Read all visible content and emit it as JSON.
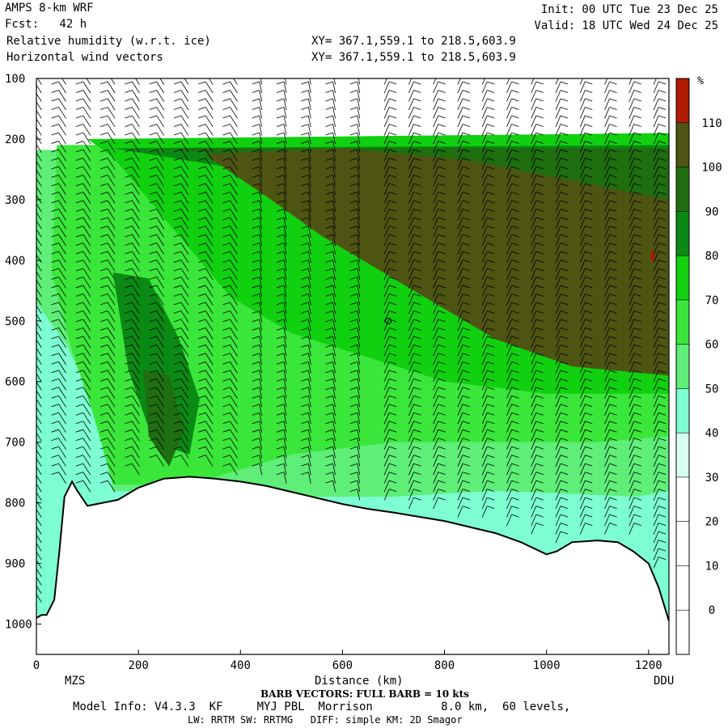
{
  "header": {
    "model": "AMPS 8-km WRF",
    "fcst": "Fcst:   42 h",
    "field1": "Relative humidity (w.r.t. ice)",
    "field2": "Horizontal wind vectors",
    "init": "Init: 00 UTC Tue 23 Dec 25",
    "valid": "Valid: 18 UTC Wed 24 Dec 25",
    "xy1": "XY= 367.1,559.1 to 218.5,603.9",
    "xy2": "XY= 367.1,559.1 to 218.5,603.9"
  },
  "footer": {
    "barb_note": "BARB VECTORS: FULL BARB = 10 kts",
    "model_info": "Model Info: V4.3.3  KF     MYJ PBL  Morrison          8.0 km,  60 levels,",
    "physics": "LW: RRTM SW: RRTMG   DIFF: simple KM: 2D Smagor"
  },
  "chart_data": {
    "type": "heatmap",
    "title": "Relative humidity (w.r.t. ice)",
    "xlabel": "Distance (km)",
    "ylabel": "",
    "x_range": [
      0,
      1240
    ],
    "y_range": [
      100,
      1050
    ],
    "y_inverted": true,
    "x_ticks": [
      0,
      200,
      400,
      600,
      800,
      1000,
      1200
    ],
    "y_ticks": [
      100,
      200,
      300,
      400,
      500,
      600,
      700,
      800,
      900,
      1000
    ],
    "endpoint_labels": {
      "left": "MZS",
      "right": "DDU"
    },
    "colorbar": {
      "unit": "%",
      "levels": [
        0,
        10,
        20,
        30,
        40,
        50,
        60,
        70,
        80,
        90,
        100,
        110
      ],
      "colors": [
        "#ffffff",
        "#ffffff",
        "#ffffff",
        "#ffffff",
        "#d8fff0",
        "#7dffd2",
        "#5fee78",
        "#3be63b",
        "#10d010",
        "#0a8a14",
        "#1f6e10",
        "#4e5412",
        "#b01a00"
      ]
    },
    "terrain_pressure": [
      [
        0,
        990
      ],
      [
        10,
        985
      ],
      [
        20,
        985
      ],
      [
        35,
        960
      ],
      [
        45,
        880
      ],
      [
        55,
        790
      ],
      [
        70,
        765
      ],
      [
        80,
        780
      ],
      [
        100,
        805
      ],
      [
        130,
        800
      ],
      [
        160,
        795
      ],
      [
        200,
        775
      ],
      [
        250,
        760
      ],
      [
        300,
        757
      ],
      [
        350,
        760
      ],
      [
        400,
        765
      ],
      [
        450,
        772
      ],
      [
        500,
        782
      ],
      [
        550,
        792
      ],
      [
        600,
        802
      ],
      [
        650,
        810
      ],
      [
        700,
        816
      ],
      [
        750,
        823
      ],
      [
        800,
        830
      ],
      [
        850,
        840
      ],
      [
        900,
        850
      ],
      [
        950,
        865
      ],
      [
        1000,
        885
      ],
      [
        1020,
        880
      ],
      [
        1050,
        865
      ],
      [
        1100,
        862
      ],
      [
        1140,
        865
      ],
      [
        1170,
        880
      ],
      [
        1200,
        900
      ],
      [
        1220,
        940
      ],
      [
        1240,
        995
      ]
    ],
    "rh_regions": [
      {
        "level": 40,
        "points": [
          [
            0,
            222
          ],
          [
            1240,
            222
          ],
          [
            1240,
            1000
          ],
          [
            0,
            1000
          ]
        ]
      },
      {
        "level": 50,
        "points": [
          [
            0,
            218
          ],
          [
            1240,
            215
          ],
          [
            1240,
            780
          ],
          [
            1180,
            790
          ],
          [
            900,
            780
          ],
          [
            700,
            790
          ],
          [
            400,
            790
          ],
          [
            150,
            780
          ],
          [
            120,
            650
          ],
          [
            60,
            540
          ],
          [
            0,
            470
          ]
        ]
      },
      {
        "level": 60,
        "points": [
          [
            40,
            210
          ],
          [
            1240,
            205
          ],
          [
            1240,
            690
          ],
          [
            1100,
            700
          ],
          [
            900,
            700
          ],
          [
            700,
            700
          ],
          [
            500,
            720
          ],
          [
            300,
            770
          ],
          [
            150,
            770
          ],
          [
            110,
            650
          ],
          [
            70,
            550
          ],
          [
            30,
            420
          ]
        ]
      },
      {
        "level": 70,
        "points": [
          [
            100,
            200
          ],
          [
            1240,
            190
          ],
          [
            1240,
            620
          ],
          [
            1000,
            620
          ],
          [
            800,
            600
          ],
          [
            650,
            560
          ],
          [
            500,
            520
          ],
          [
            380,
            460
          ],
          [
            300,
            380
          ],
          [
            220,
            300
          ],
          [
            150,
            230
          ]
        ]
      },
      {
        "level": 80,
        "points": [
          [
            150,
            215
          ],
          [
            1240,
            210
          ],
          [
            1240,
            450
          ],
          [
            1000,
            420
          ],
          [
            800,
            360
          ],
          [
            620,
            300
          ],
          [
            480,
            260
          ],
          [
            330,
            240
          ]
        ]
      },
      {
        "level": 90,
        "points": [
          [
            250,
            215
          ],
          [
            1240,
            215
          ],
          [
            1240,
            320
          ],
          [
            1050,
            290
          ],
          [
            850,
            245
          ],
          [
            600,
            235
          ],
          [
            400,
            228
          ]
        ]
      },
      {
        "level": 100,
        "points": [
          [
            330,
            225
          ],
          [
            600,
            215
          ],
          [
            850,
            235
          ],
          [
            1240,
            300
          ],
          [
            1240,
            590
          ],
          [
            1050,
            575
          ],
          [
            900,
            530
          ],
          [
            780,
            470
          ],
          [
            680,
            420
          ],
          [
            560,
            360
          ],
          [
            460,
            300
          ]
        ]
      },
      {
        "level": 80,
        "points": [
          [
            150,
            420
          ],
          [
            220,
            430
          ],
          [
            280,
            530
          ],
          [
            320,
            630
          ],
          [
            300,
            720
          ],
          [
            230,
            700
          ],
          [
            180,
            580
          ]
        ]
      },
      {
        "level": 90,
        "points": [
          [
            210,
            580
          ],
          [
            260,
            590
          ],
          [
            290,
            680
          ],
          [
            260,
            740
          ],
          [
            220,
            690
          ]
        ]
      },
      {
        "level": 110,
        "points": [
          [
            1205,
            385
          ],
          [
            1212,
            385
          ],
          [
            1212,
            402
          ],
          [
            1205,
            400
          ]
        ]
      }
    ]
  }
}
